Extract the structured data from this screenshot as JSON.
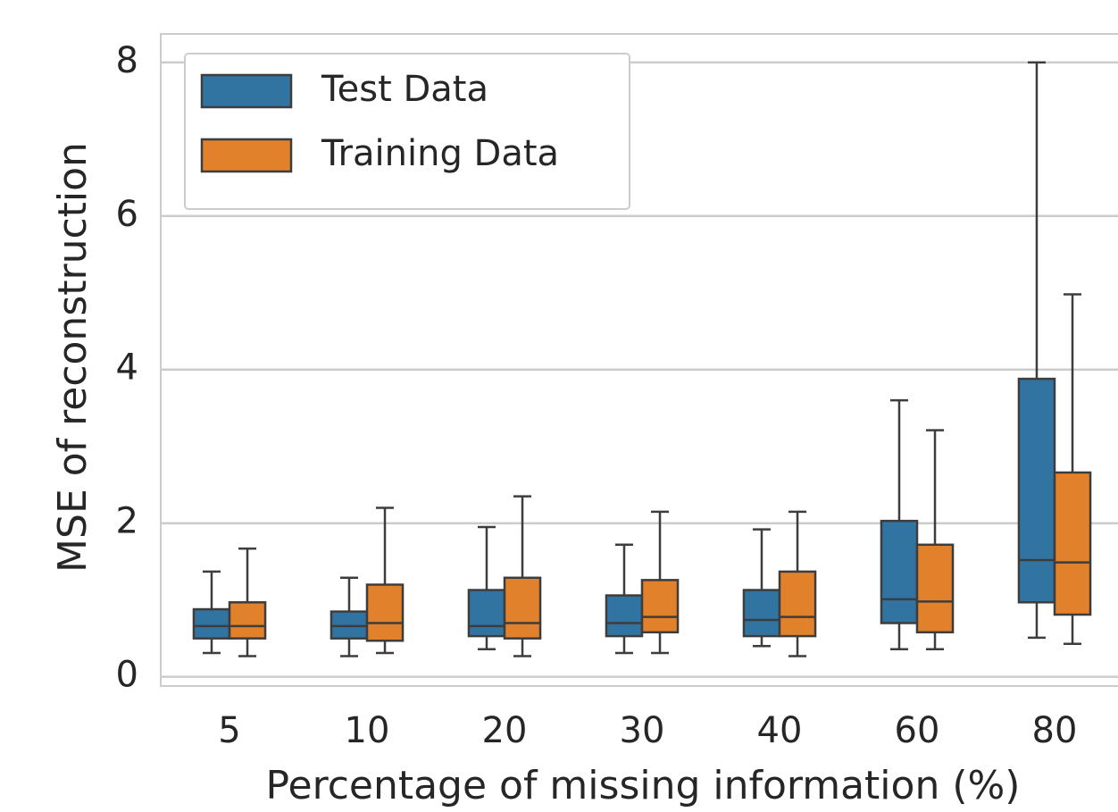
{
  "chart_data": {
    "type": "box",
    "x_label": "Percentage of missing information (%)",
    "y_label": "MSE of reconstruction",
    "categories": [
      "5",
      "10",
      "20",
      "30",
      "40",
      "60",
      "80"
    ],
    "series": [
      {
        "name": "Test Data",
        "color": "#3274a1",
        "whislo": [
          0.31,
          0.27,
          0.36,
          0.31,
          0.4,
          0.36,
          0.51
        ],
        "q1": [
          0.5,
          0.5,
          0.53,
          0.53,
          0.53,
          0.7,
          0.97
        ],
        "med": [
          0.66,
          0.66,
          0.66,
          0.7,
          0.74,
          1.01,
          1.52
        ],
        "q3": [
          0.88,
          0.85,
          1.13,
          1.06,
          1.13,
          2.03,
          3.88
        ],
        "whishi": [
          1.37,
          1.29,
          1.95,
          1.72,
          1.92,
          3.6,
          8.0
        ]
      },
      {
        "name": "Training Data",
        "color": "#e1812c",
        "whislo": [
          0.27,
          0.31,
          0.27,
          0.31,
          0.27,
          0.36,
          0.43
        ],
        "q1": [
          0.5,
          0.47,
          0.5,
          0.58,
          0.53,
          0.58,
          0.81
        ],
        "med": [
          0.66,
          0.7,
          0.7,
          0.78,
          0.78,
          0.98,
          1.49
        ],
        "q3": [
          0.97,
          1.2,
          1.29,
          1.26,
          1.37,
          1.72,
          2.66
        ],
        "whishi": [
          1.67,
          2.2,
          2.35,
          2.15,
          2.15,
          3.21,
          4.98
        ]
      }
    ],
    "ylim": [
      -0.12,
      8.37
    ],
    "yticks": [
      0,
      2,
      4,
      6,
      8
    ],
    "grid": true,
    "legend": "upper left"
  }
}
